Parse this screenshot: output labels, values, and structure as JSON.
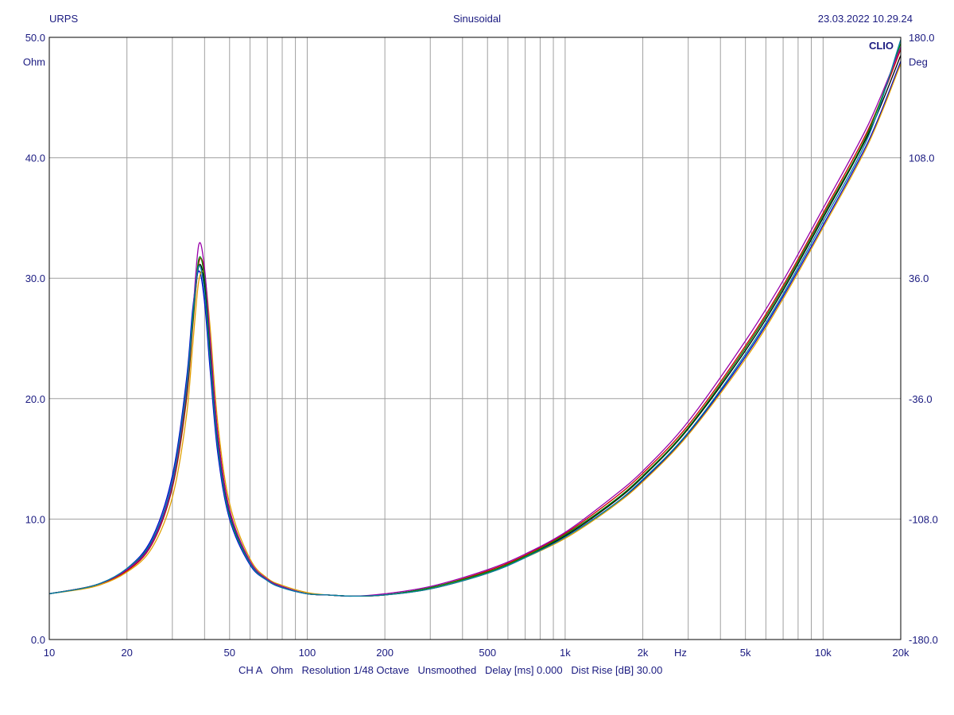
{
  "header": {
    "left": "URPS",
    "center": "Sinusoidal",
    "right": "23.03.2022 10.29.24"
  },
  "brand": "CLIO",
  "footer": {
    "channel": "CH A",
    "unit": "Ohm",
    "resolution": "Resolution 1/48 Octave",
    "smoothing": "Unsmoothed",
    "delay": "Delay [ms] 0.000",
    "dist_rise": "Dist Rise [dB] 30.00"
  },
  "colors": {
    "axis_text": "#1a1a80",
    "grid": "#a0a0a0",
    "frame": "#000000"
  },
  "chart_data": {
    "type": "line",
    "x_scale": "log",
    "xlim": [
      10,
      20000
    ],
    "ylim": [
      0,
      50
    ],
    "y2lim": [
      -180,
      180
    ],
    "ylabel": "Ohm",
    "y2label": "Deg",
    "xlabel": "Hz",
    "grid": true,
    "x_ticks": [
      "10",
      "20",
      "50",
      "100",
      "200",
      "500",
      "1k",
      "2k",
      "5k",
      "10k",
      "20k"
    ],
    "y_ticks": [
      "0.0",
      "10.0",
      "20.0",
      "30.0",
      "40.0",
      "50.0"
    ],
    "y2_ticks": [
      "-180.0",
      "-108.0",
      "-36.0",
      "36.0",
      "108.0",
      "180.0"
    ],
    "series": [
      {
        "color": "#000000",
        "x": [
          10,
          15,
          20,
          25,
          30,
          34,
          36,
          38,
          40,
          42,
          45,
          50,
          60,
          70,
          80,
          100,
          120,
          150,
          200,
          300,
          500,
          700,
          1000,
          1500,
          2000,
          3000,
          5000,
          7000,
          10000,
          15000,
          20000
        ],
        "values": [
          3.8,
          4.5,
          5.8,
          8.1,
          13.0,
          20.5,
          26.5,
          31.0,
          29.5,
          24.0,
          16.5,
          10.5,
          6.4,
          5.0,
          4.4,
          3.8,
          3.7,
          3.6,
          3.7,
          4.3,
          5.6,
          6.9,
          8.6,
          11.2,
          13.5,
          17.5,
          24.0,
          29.0,
          35.0,
          42.0,
          48.5
        ]
      },
      {
        "color": "#cc0000",
        "x": [
          10,
          15,
          20,
          25,
          30,
          34,
          36,
          38,
          40,
          42,
          45,
          50,
          60,
          70,
          80,
          100,
          120,
          150,
          200,
          300,
          500,
          700,
          1000,
          1500,
          2000,
          3000,
          5000,
          7000,
          10000,
          15000,
          20000
        ],
        "values": [
          3.8,
          4.5,
          5.7,
          7.9,
          12.6,
          19.8,
          26.0,
          31.3,
          30.5,
          25.0,
          17.2,
          10.8,
          6.5,
          5.0,
          4.4,
          3.8,
          3.7,
          3.6,
          3.7,
          4.3,
          5.7,
          7.0,
          8.8,
          11.5,
          13.8,
          17.8,
          24.4,
          29.4,
          35.4,
          42.4,
          49.0
        ]
      },
      {
        "color": "#0000cc",
        "x": [
          10,
          15,
          20,
          25,
          30,
          34,
          36,
          38,
          40,
          42,
          45,
          50,
          60,
          70,
          80,
          100,
          120,
          150,
          200,
          300,
          500,
          700,
          1000,
          1500,
          2000,
          3000,
          5000,
          7000,
          10000,
          15000,
          20000
        ],
        "values": [
          3.8,
          4.5,
          5.9,
          8.4,
          13.6,
          21.5,
          27.5,
          30.6,
          28.0,
          22.5,
          15.5,
          10.0,
          6.2,
          4.9,
          4.3,
          3.8,
          3.7,
          3.6,
          3.7,
          4.2,
          5.5,
          6.8,
          8.5,
          11.0,
          13.2,
          17.1,
          23.5,
          28.5,
          34.4,
          41.4,
          48.0
        ]
      },
      {
        "color": "#e0a000",
        "x": [
          10,
          15,
          20,
          25,
          30,
          34,
          36,
          38,
          40,
          42,
          45,
          50,
          60,
          70,
          80,
          100,
          120,
          150,
          200,
          300,
          500,
          700,
          1000,
          1500,
          2000,
          3000,
          5000,
          7000,
          10000,
          15000,
          20000
        ],
        "values": [
          3.8,
          4.4,
          5.6,
          7.6,
          11.8,
          18.5,
          24.5,
          29.8,
          30.2,
          26.0,
          18.0,
          11.3,
          6.7,
          5.1,
          4.5,
          3.9,
          3.7,
          3.6,
          3.7,
          4.2,
          5.5,
          6.8,
          8.4,
          10.9,
          13.1,
          17.0,
          23.3,
          28.3,
          34.2,
          41.2,
          47.8
        ]
      },
      {
        "color": "#008800",
        "x": [
          10,
          15,
          20,
          25,
          30,
          34,
          36,
          38,
          40,
          42,
          45,
          50,
          60,
          70,
          80,
          100,
          120,
          150,
          200,
          300,
          500,
          700,
          1000,
          1500,
          2000,
          3000,
          5000,
          7000,
          10000,
          15000,
          20000
        ],
        "values": [
          3.8,
          4.5,
          5.8,
          8.0,
          12.8,
          20.2,
          26.3,
          31.6,
          30.0,
          24.5,
          16.8,
          10.6,
          6.4,
          5.0,
          4.4,
          3.8,
          3.7,
          3.6,
          3.7,
          4.3,
          5.6,
          6.9,
          8.7,
          11.3,
          13.6,
          17.6,
          24.2,
          29.2,
          35.2,
          42.2,
          49.5
        ]
      },
      {
        "color": "#9900aa",
        "x": [
          10,
          15,
          20,
          25,
          30,
          34,
          36,
          38,
          40,
          42,
          45,
          50,
          60,
          70,
          80,
          100,
          120,
          150,
          200,
          300,
          500,
          700,
          1000,
          1500,
          2000,
          3000,
          5000,
          7000,
          10000,
          15000,
          20000
        ],
        "values": [
          3.8,
          4.5,
          5.8,
          8.0,
          12.9,
          20.6,
          27.0,
          32.8,
          30.8,
          25.0,
          17.0,
          10.7,
          6.5,
          5.0,
          4.4,
          3.8,
          3.7,
          3.6,
          3.8,
          4.4,
          5.8,
          7.1,
          8.9,
          11.7,
          14.0,
          18.1,
          24.8,
          29.8,
          35.8,
          42.8,
          49.2
        ]
      },
      {
        "color": "#0080a0",
        "x": [
          10,
          15,
          20,
          25,
          30,
          34,
          36,
          38,
          40,
          42,
          45,
          50,
          60,
          70,
          80,
          100,
          120,
          150,
          200,
          300,
          500,
          700,
          1000,
          1500,
          2000,
          3000,
          5000,
          7000,
          10000,
          15000,
          20000
        ],
        "values": [
          3.8,
          4.5,
          5.9,
          8.2,
          13.2,
          21.0,
          27.0,
          31.0,
          28.8,
          23.2,
          16.0,
          10.2,
          6.3,
          4.9,
          4.3,
          3.8,
          3.7,
          3.6,
          3.7,
          4.2,
          5.5,
          6.8,
          8.5,
          11.0,
          13.3,
          17.2,
          23.7,
          28.7,
          34.7,
          41.8,
          49.8
        ]
      }
    ]
  }
}
